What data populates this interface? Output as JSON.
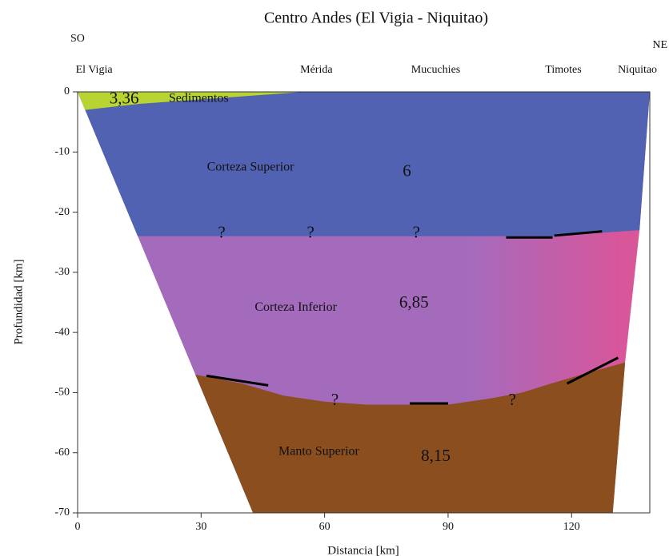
{
  "chart_data": {
    "type": "cross-section",
    "title": "Centro Andes (El Vigia  - Niquitao)",
    "x_label": "Distancia [km]",
    "y_label": "Profundidad [km]",
    "left_label": "SO",
    "right_label": "NE",
    "xlim": [
      0,
      139
    ],
    "ylim": [
      -70,
      0
    ],
    "xticks": [
      0,
      30,
      60,
      90,
      120
    ],
    "yticks": [
      0,
      -10,
      -20,
      -30,
      -40,
      -50,
      -60,
      -70
    ],
    "stations": [
      {
        "text": "El Vigia",
        "x": 4
      },
      {
        "text": "Mérida",
        "x": 58
      },
      {
        "text": "Mucuchies",
        "x": 87
      },
      {
        "text": "Timotes",
        "x": 118
      },
      {
        "text": "Niquitao",
        "x": 136
      }
    ],
    "layers": [
      {
        "color": "#a46bbd",
        "x": [
          0,
          139,
          136.5,
          133,
          130,
          42.6
        ],
        "y": [
          0,
          0,
          -23,
          -45,
          -70,
          -70
        ]
      },
      {
        "color": "#5262b2",
        "x": [
          0,
          139,
          136.5,
          115,
          14.6
        ],
        "y": [
          0,
          0,
          -23,
          -24,
          -24
        ]
      },
      {
        "color": "#8a4e1f",
        "x": [
          28.6,
          40,
          50,
          60,
          70,
          90,
          100,
          108,
          115,
          125,
          133,
          130,
          42.6
        ],
        "y": [
          -47,
          -48.5,
          -50.5,
          -51.5,
          -52,
          -52,
          -51,
          -50,
          -48.5,
          -46.5,
          -45,
          -70,
          -70
        ]
      },
      {
        "color": "#b8d432",
        "x": [
          0,
          55,
          35,
          15,
          1.8
        ],
        "y": [
          0,
          0,
          -1,
          -2,
          -3
        ]
      }
    ],
    "reflectors": [
      {
        "x": [
          31.3,
          46.3
        ],
        "y": [
          -47.2,
          -48.8
        ]
      },
      {
        "x": [
          80.7,
          90
        ],
        "y": [
          -51.8,
          -51.8
        ]
      },
      {
        "x": [
          118.9,
          131.3
        ],
        "y": [
          -48.5,
          -44.2
        ]
      },
      {
        "x": [
          104.1,
          115.4
        ],
        "y": [
          -24.2,
          -24.2
        ]
      },
      {
        "x": [
          115.8,
          127.4
        ],
        "y": [
          -23.9,
          -23.2
        ]
      }
    ],
    "annotations": [
      {
        "text": "3,36",
        "x": 11.3,
        "y": -1.3
      },
      {
        "text": "Sedimentos",
        "x": 29.4,
        "y": -1.2
      },
      {
        "text": "Corteza Superior",
        "x": 42,
        "y": -12.6
      },
      {
        "text": "6",
        "x": 80,
        "y": -13.4
      },
      {
        "text": "?",
        "x": 35,
        "y": -23.6
      },
      {
        "text": "?",
        "x": 56.6,
        "y": -23.6
      },
      {
        "text": "?",
        "x": 82.3,
        "y": -23.6
      },
      {
        "text": "Corteza Inferior",
        "x": 53,
        "y": -35.9
      },
      {
        "text": "6,85",
        "x": 81.7,
        "y": -35.2
      },
      {
        "text": "?",
        "x": 62.5,
        "y": -51.4
      },
      {
        "text": "?",
        "x": 105.6,
        "y": -51.4
      },
      {
        "text": "Manto Superior",
        "x": 58.6,
        "y": -59.9
      },
      {
        "text": "8,15",
        "x": 87,
        "y": -60.7
      }
    ]
  }
}
